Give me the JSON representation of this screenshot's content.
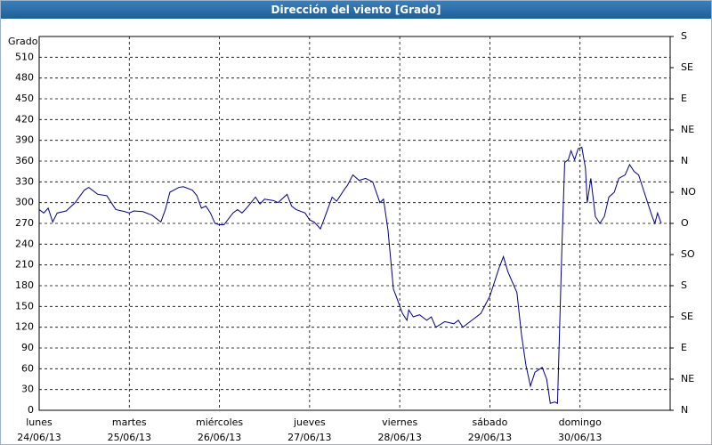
{
  "chart_data": {
    "type": "line",
    "title": "Dirección del viento [Grado]",
    "y_label": "Grado",
    "xlim": [
      0,
      7
    ],
    "ylim": [
      0,
      540
    ],
    "y2lim": [
      0,
      540
    ],
    "grid": true,
    "xticks": [
      {
        "value": 0,
        "label": "lunes"
      },
      {
        "value": 1,
        "label": "martes"
      },
      {
        "value": 2,
        "label": "miércoles"
      },
      {
        "value": 3,
        "label": "jueves"
      },
      {
        "value": 4,
        "label": "viernes"
      },
      {
        "value": 5,
        "label": "sábado"
      },
      {
        "value": 6,
        "label": "domingo"
      }
    ],
    "xtick_dates": [
      "24/06/13",
      "25/06/13",
      "26/06/13",
      "27/06/13",
      "28/06/13",
      "29/06/13",
      "30/06/13"
    ],
    "yticks": [
      0,
      30,
      60,
      90,
      120,
      150,
      180,
      210,
      240,
      270,
      300,
      330,
      360,
      390,
      420,
      450,
      480,
      510
    ],
    "y2ticks": [
      {
        "value": 0,
        "label": "N"
      },
      {
        "value": 45,
        "label": "NE"
      },
      {
        "value": 90,
        "label": "E"
      },
      {
        "value": 135,
        "label": "SE"
      },
      {
        "value": 180,
        "label": "S"
      },
      {
        "value": 225,
        "label": "SO"
      },
      {
        "value": 270,
        "label": "O"
      },
      {
        "value": 315,
        "label": "NO"
      },
      {
        "value": 360,
        "label": "N"
      },
      {
        "value": 405,
        "label": "NE"
      },
      {
        "value": 450,
        "label": "E"
      },
      {
        "value": 495,
        "label": "SE"
      },
      {
        "value": 540,
        "label": "S"
      }
    ],
    "series": [
      {
        "color": "#000080",
        "x": [
          0,
          0.05,
          0.1,
          0.15,
          0.2,
          0.3,
          0.4,
          0.5,
          0.55,
          0.65,
          0.75,
          0.8,
          0.85,
          0.95,
          1.0,
          1.05,
          1.15,
          1.25,
          1.35,
          1.4,
          1.45,
          1.55,
          1.6,
          1.7,
          1.75,
          1.8,
          1.85,
          1.9,
          1.95,
          2.0,
          2.05,
          2.15,
          2.2,
          2.25,
          2.3,
          2.4,
          2.45,
          2.5,
          2.6,
          2.65,
          2.75,
          2.8,
          2.85,
          2.95,
          3.0,
          3.05,
          3.1,
          3.12,
          3.2,
          3.25,
          3.3,
          3.38,
          3.42,
          3.48,
          3.55,
          3.62,
          3.7,
          3.78,
          3.82,
          3.87,
          3.93,
          3.96,
          4.03,
          4.08,
          4.1,
          4.15,
          4.22,
          4.3,
          4.35,
          4.4,
          4.5,
          4.6,
          4.65,
          4.7,
          4.8,
          4.9,
          5.0,
          5.05,
          5.1,
          5.15,
          5.2,
          5.3,
          5.35,
          5.4,
          5.45,
          5.5,
          5.58,
          5.63,
          5.67,
          5.72,
          5.75,
          5.8,
          5.83,
          5.87,
          5.9,
          5.94,
          5.98,
          6.02,
          6.06,
          6.08,
          6.12,
          6.17,
          6.22,
          6.27,
          6.32,
          6.38,
          6.43,
          6.5,
          6.55,
          6.6,
          6.65,
          6.7,
          6.75,
          6.8,
          6.83,
          6.86,
          6.9
        ],
        "values": [
          290,
          285,
          292,
          272,
          285,
          288,
          300,
          318,
          322,
          312,
          310,
          300,
          290,
          287,
          285,
          288,
          287,
          282,
          272,
          290,
          315,
          322,
          323,
          318,
          310,
          292,
          295,
          285,
          270,
          268,
          268,
          285,
          290,
          285,
          292,
          308,
          298,
          305,
          303,
          300,
          312,
          295,
          290,
          285,
          275,
          272,
          265,
          262,
          290,
          308,
          302,
          318,
          325,
          340,
          332,
          335,
          330,
          300,
          305,
          260,
          175,
          165,
          140,
          130,
          145,
          135,
          138,
          130,
          135,
          120,
          128,
          125,
          130,
          120,
          130,
          140,
          165,
          185,
          205,
          222,
          200,
          170,
          110,
          65,
          35,
          55,
          62,
          45,
          10,
          12,
          10,
          240,
          358,
          362,
          375,
          362,
          378,
          380,
          350,
          300,
          335,
          280,
          270,
          280,
          308,
          315,
          335,
          340,
          355,
          345,
          340,
          320,
          300,
          280,
          270,
          285,
          270
        ]
      }
    ]
  }
}
